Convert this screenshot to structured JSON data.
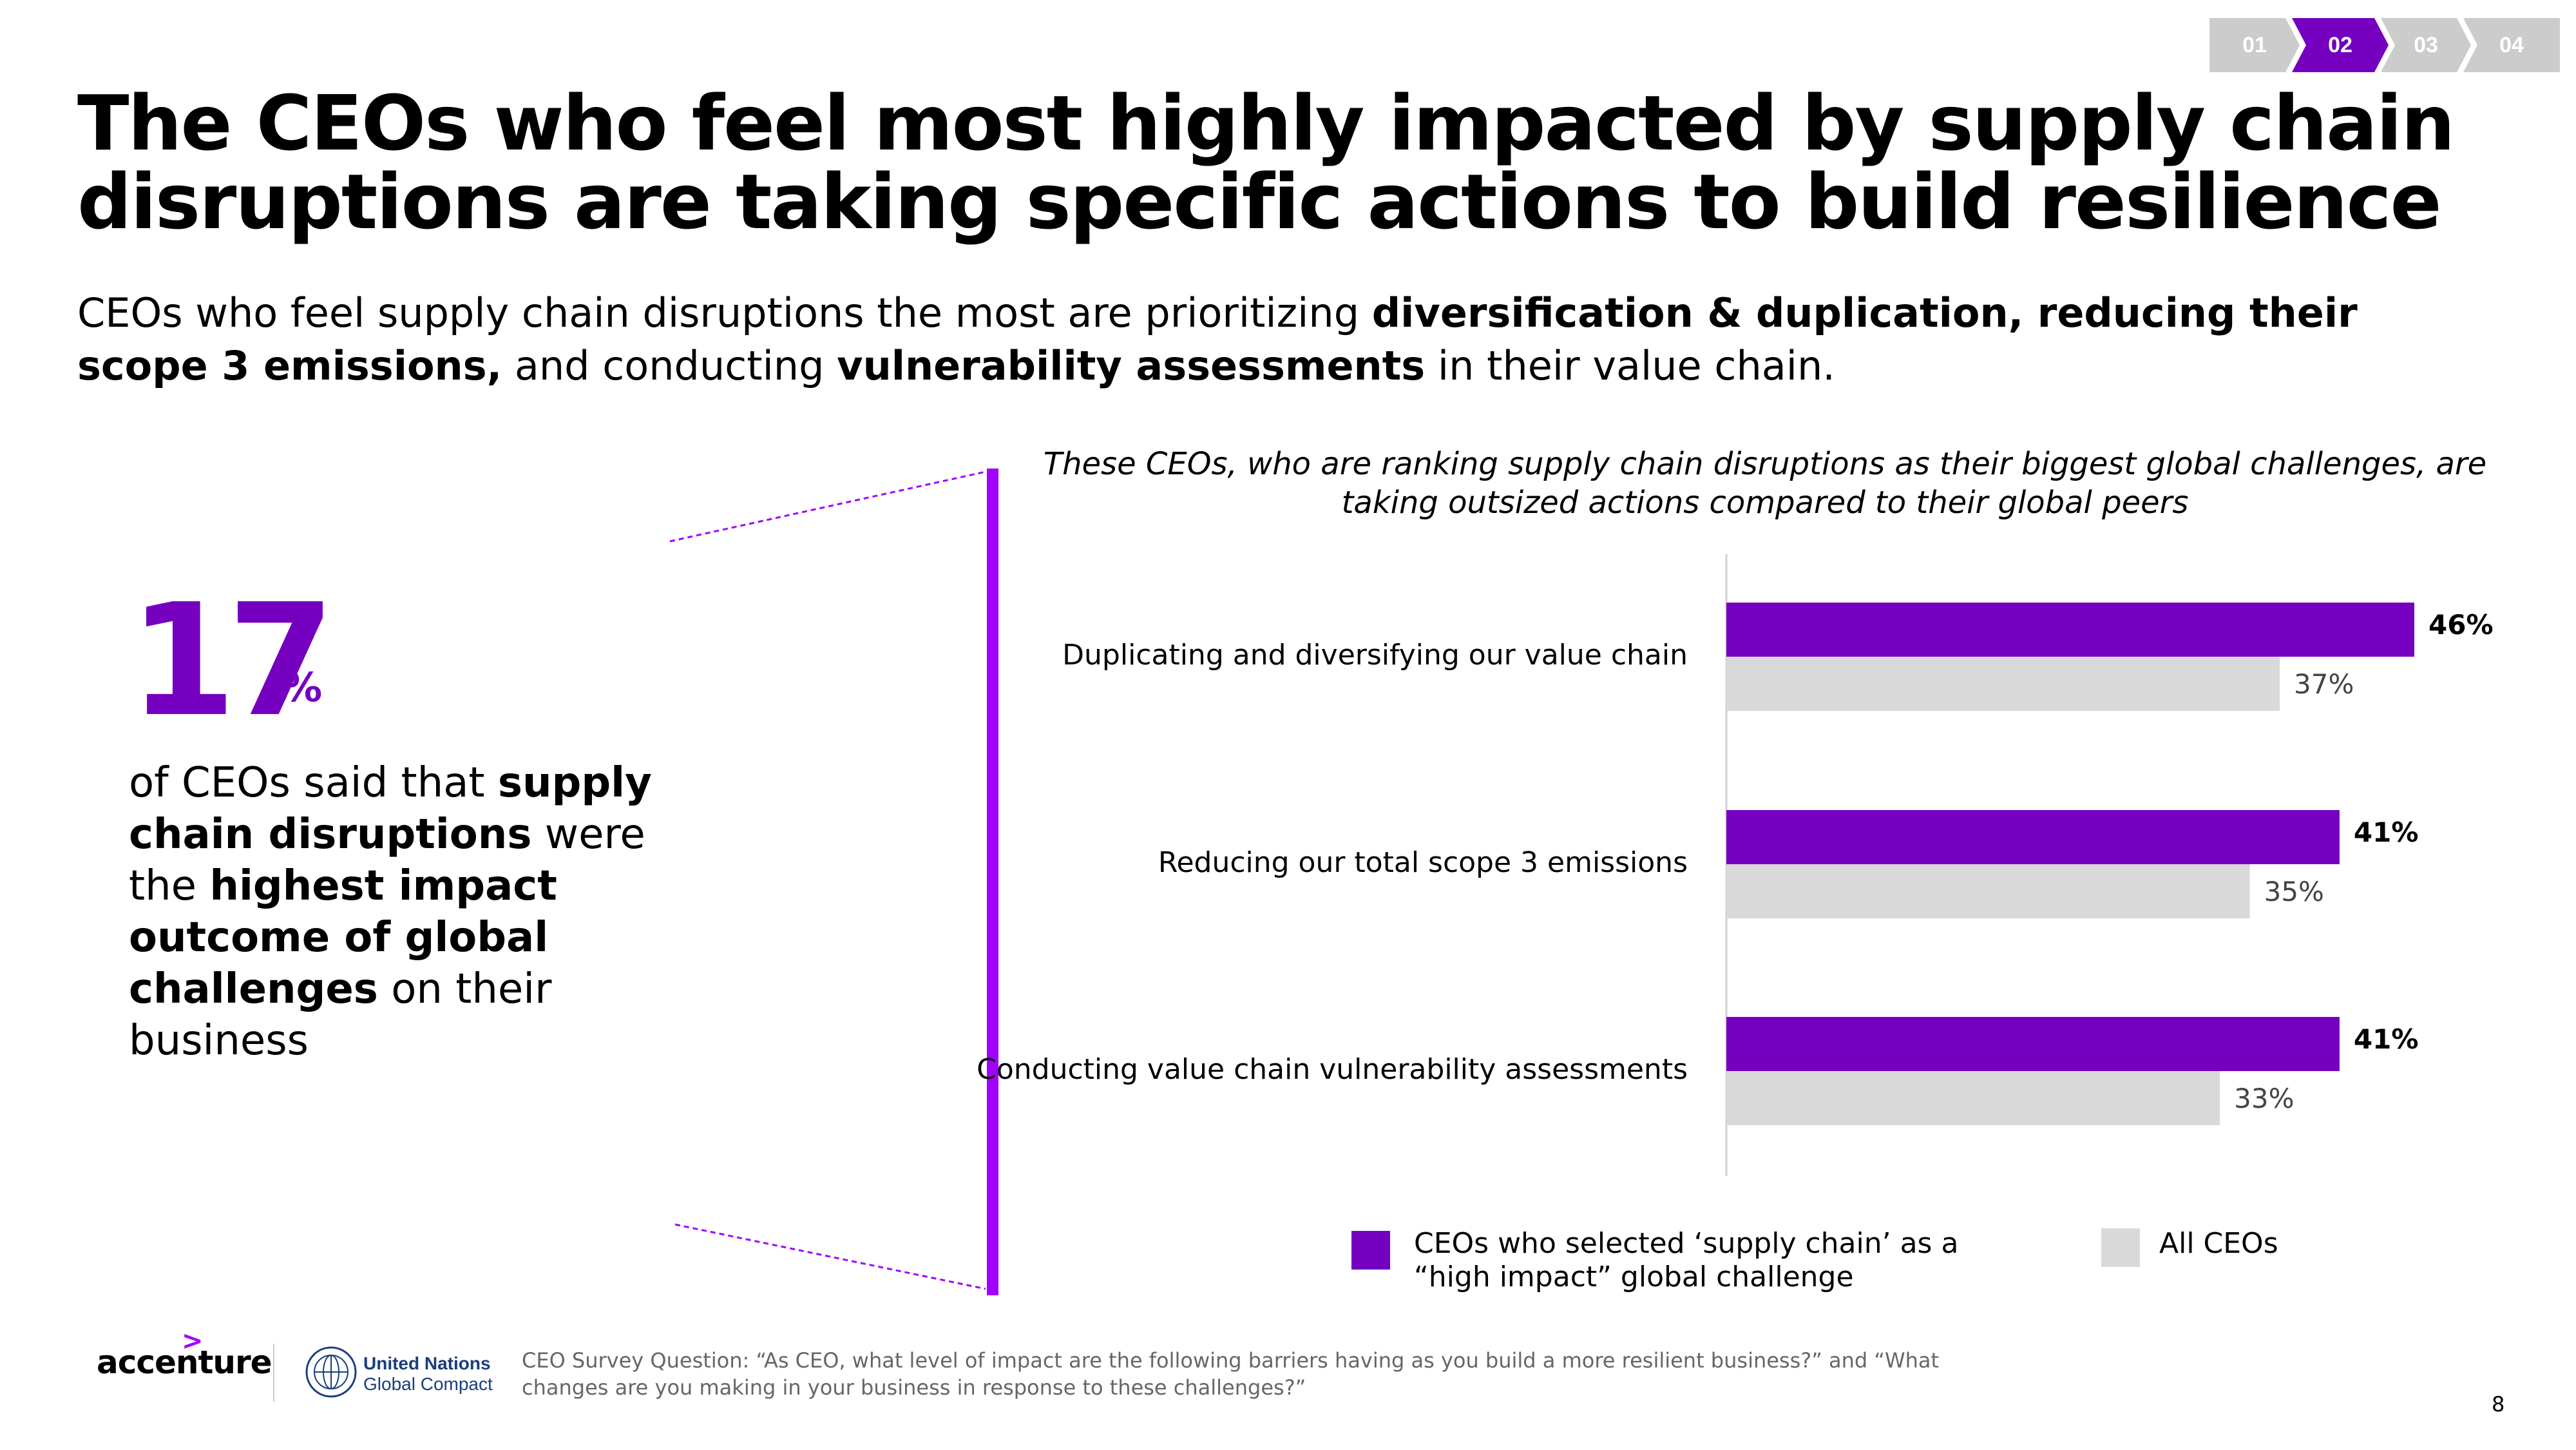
{
  "progress": {
    "steps": [
      {
        "label": "01",
        "active": false
      },
      {
        "label": "02",
        "active": true
      },
      {
        "label": "03",
        "active": false
      },
      {
        "label": "04",
        "active": false
      }
    ]
  },
  "header": {
    "title": "The CEOs who feel most highly impacted by supply chain disruptions are taking specific actions to build resilience",
    "subtitle": {
      "part1": "CEOs who feel supply chain disruptions the most are prioritizing ",
      "bold1": "diversification & duplication, reducing their scope 3 emissions,",
      "part2": " and conducting ",
      "bold2": "vulnerability assessments",
      "part3": " in their value chain."
    }
  },
  "stat": {
    "number": "17",
    "unit": "%",
    "text": {
      "part1": "of CEOs said that ",
      "bold1": "supply chain disruptions",
      "part2": " were the ",
      "bold2": "highest impact outcome of global challenges",
      "part3": " on their business"
    }
  },
  "chart_caption": "These CEOs, who are ranking supply chain disruptions as their biggest global challenges, are taking outsized actions compared to their global peers",
  "chart_data": {
    "type": "bar",
    "orientation": "horizontal",
    "categories": [
      "Duplicating and diversifying our value chain",
      "Reducing our total scope 3 emissions",
      "Conducting value chain vulnerability assessments"
    ],
    "series": [
      {
        "name": "CEOs who selected ‘supply chain’ as a “high impact” global challenge",
        "values": [
          46,
          41,
          41
        ],
        "labels": [
          "46%",
          "41%",
          "41%"
        ],
        "color": "#7500c0"
      },
      {
        "name": "All CEOs",
        "values": [
          37,
          35,
          33
        ],
        "labels": [
          "37%",
          "35%",
          "33%"
        ],
        "color": "#d9d9d9"
      }
    ],
    "xlim": [
      0,
      50
    ],
    "grid": false,
    "legend": "bottom",
    "colors": {
      "axis": "#d0d0d0",
      "accent_line": "#a100ff"
    }
  },
  "footer": {
    "survey_question": "CEO Survey Question: “As CEO, what level of impact are the following barriers having as you build a more resilient business?” and “What changes are you making in your business in response to these challenges?”",
    "page_number": "8",
    "brand": "accenture",
    "un_line1": "United Nations",
    "un_line2": "Global Compact"
  }
}
